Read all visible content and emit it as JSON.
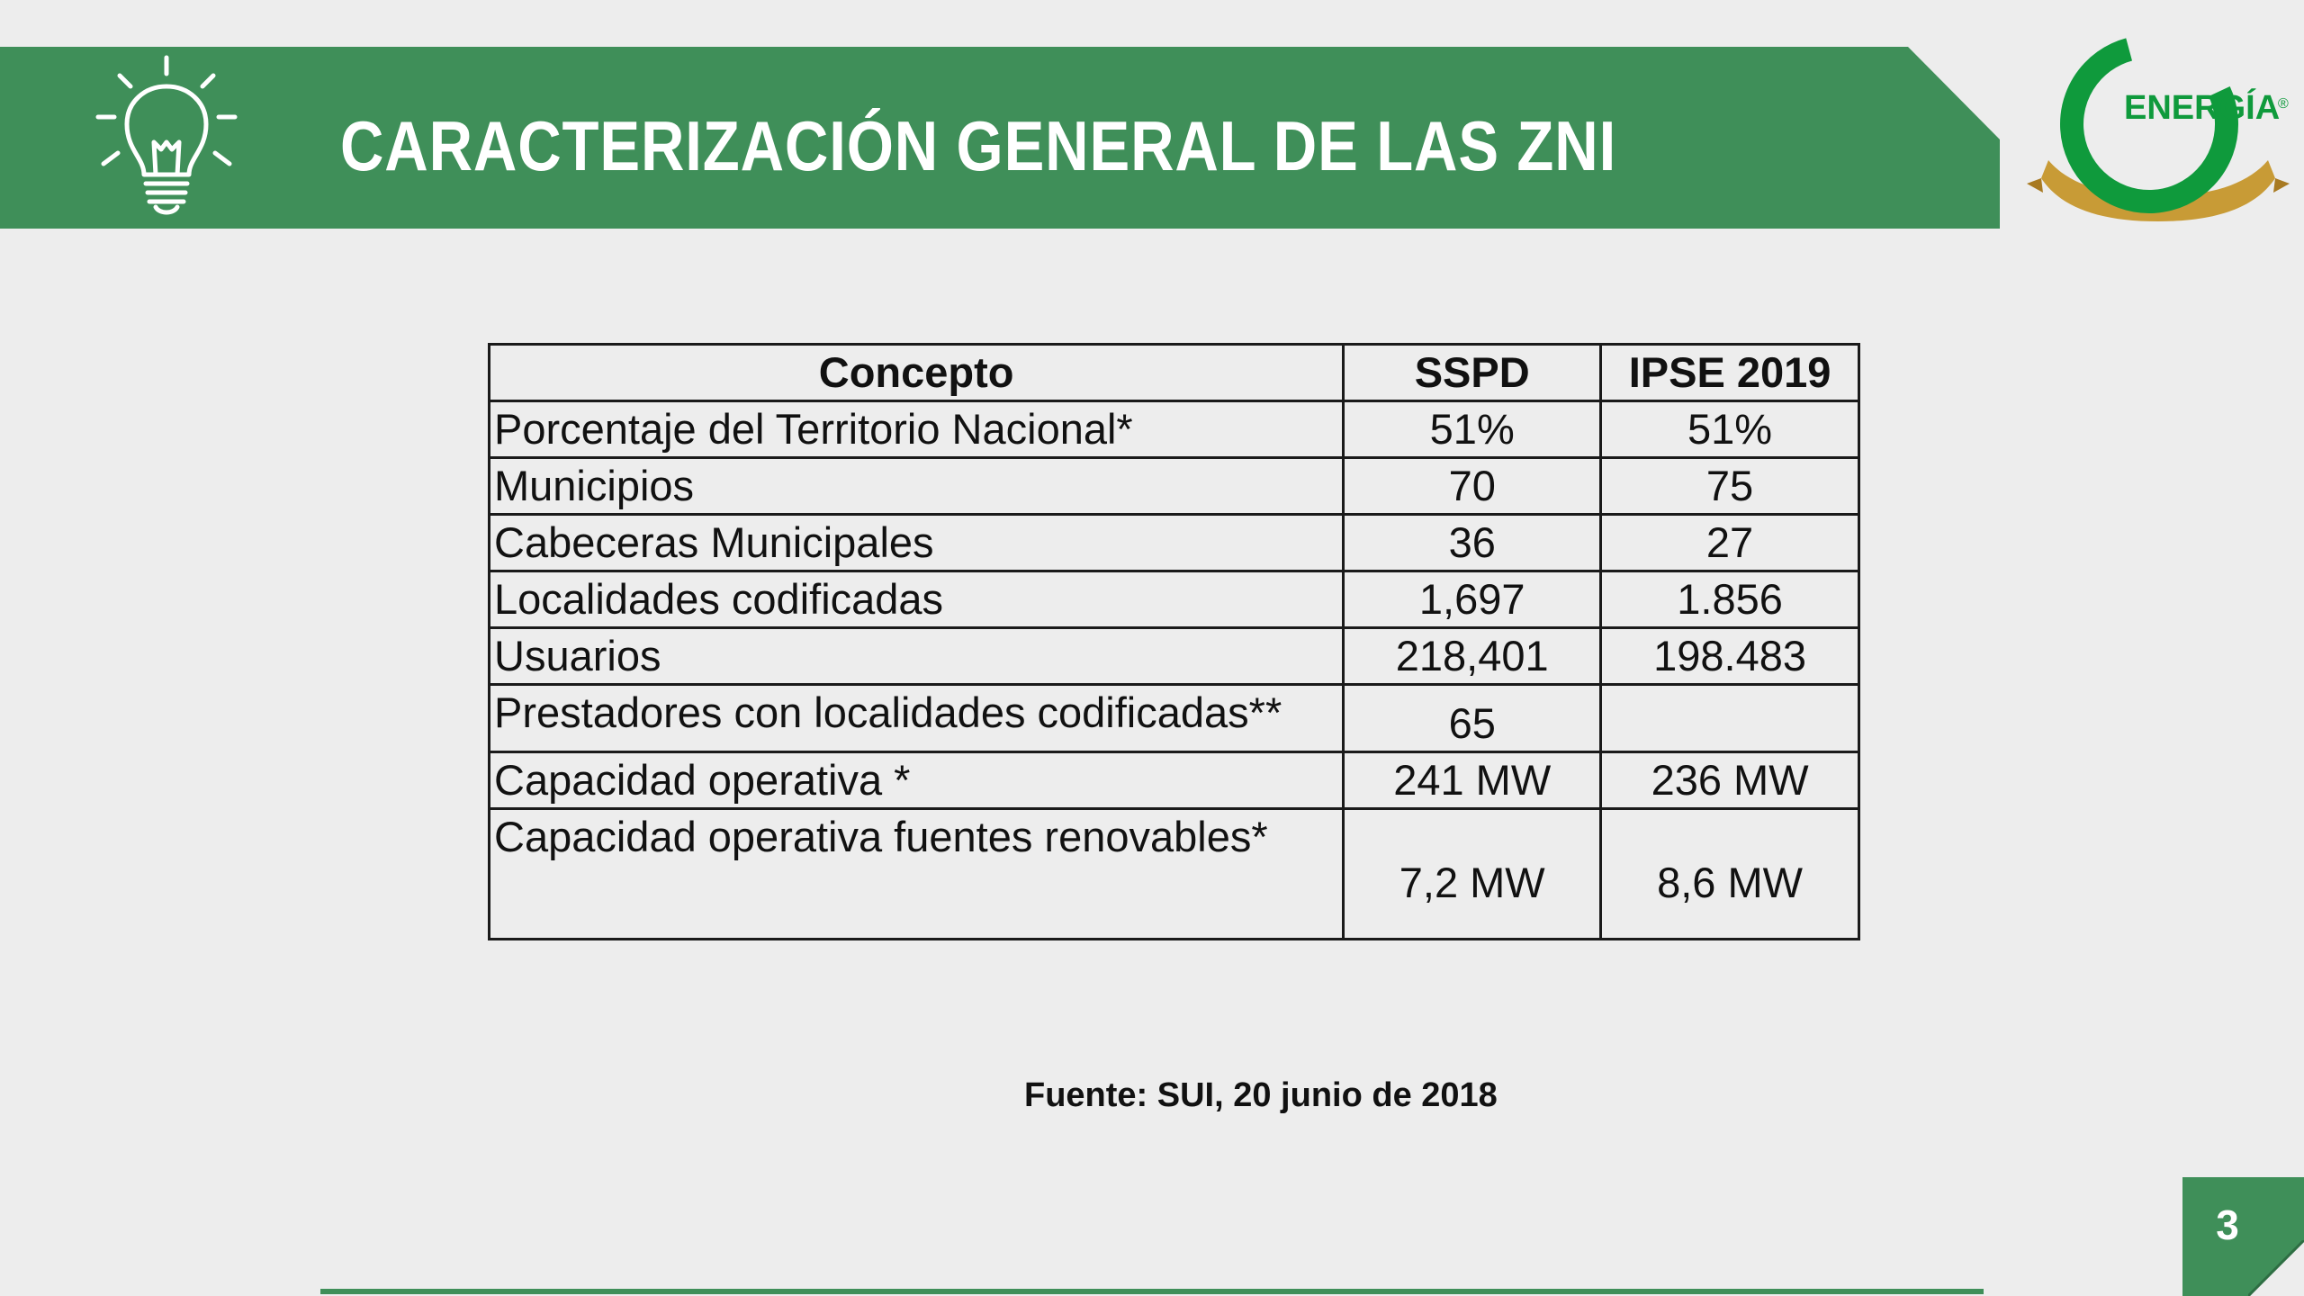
{
  "header": {
    "title": "CARACTERIZACIÓN GENERAL DE LAS ZNI",
    "icon": "lightbulb-icon",
    "accent_color": "#3f8f59"
  },
  "logo": {
    "text": "ENERGÍA",
    "registered_mark": "®",
    "icon": "energia-logo",
    "colors": {
      "ring": "#0f9a3c",
      "ribbon": "#c89b36"
    }
  },
  "table": {
    "headers": [
      "Concepto",
      "SSPD",
      "IPSE 2019"
    ],
    "rows": [
      {
        "concepto": "Porcentaje del Territorio Nacional*",
        "sspd": "51%",
        "ipse": "51%"
      },
      {
        "concepto": "Municipios",
        "sspd": "70",
        "ipse": "75"
      },
      {
        "concepto": "Cabeceras Municipales",
        "sspd": "36",
        "ipse": "27"
      },
      {
        "concepto": "Localidades codificadas",
        "sspd": "1,697",
        "ipse": "1.856"
      },
      {
        "concepto": "Usuarios",
        "sspd": "218,401",
        "ipse": "198.483"
      },
      {
        "concepto": "Prestadores con localidades codificadas**",
        "sspd": "65",
        "ipse": ""
      },
      {
        "concepto": "Capacidad operativa *",
        "sspd": "241 MW",
        "ipse": "236 MW"
      },
      {
        "concepto": "Capacidad operativa fuentes renovables*",
        "sspd": "7,2 MW",
        "ipse": "8,6 MW"
      }
    ]
  },
  "source": "Fuente: SUI, 20 junio de 2018",
  "page_number": "3"
}
